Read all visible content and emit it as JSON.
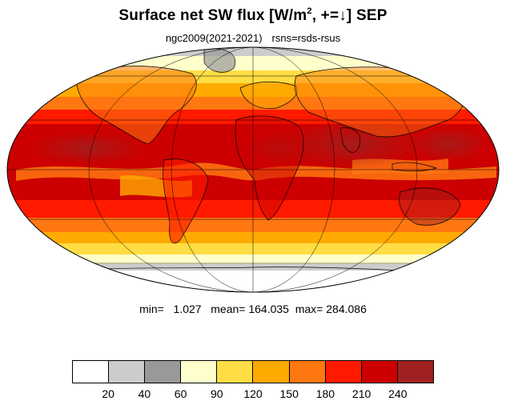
{
  "title": {
    "prefix": "Surface net SW flux [W/m",
    "sup": "2",
    "suffix": ", +=↓]  SEP"
  },
  "subtitle": {
    "case": "ngc2009(2021-2021)",
    "variable": "rsns=rsds-rsus"
  },
  "stats": {
    "min_label": "min=",
    "min_value": "1.027",
    "mean_label": "mean=",
    "mean_value": "164.035",
    "max_label": "max=",
    "max_value": "284.086"
  },
  "colorbar": {
    "colors": [
      "#ffffff",
      "#cccccc",
      "#999999",
      "#ffffcc",
      "#ffdd44",
      "#ffaa00",
      "#ff7711",
      "#ff1a00",
      "#cc0000",
      "#a02020"
    ],
    "tick_labels": [
      "20",
      "40",
      "60",
      "90",
      "120",
      "150",
      "180",
      "210",
      "240"
    ]
  },
  "map": {
    "projection": "mollweide",
    "central_longitude": 0
  }
}
